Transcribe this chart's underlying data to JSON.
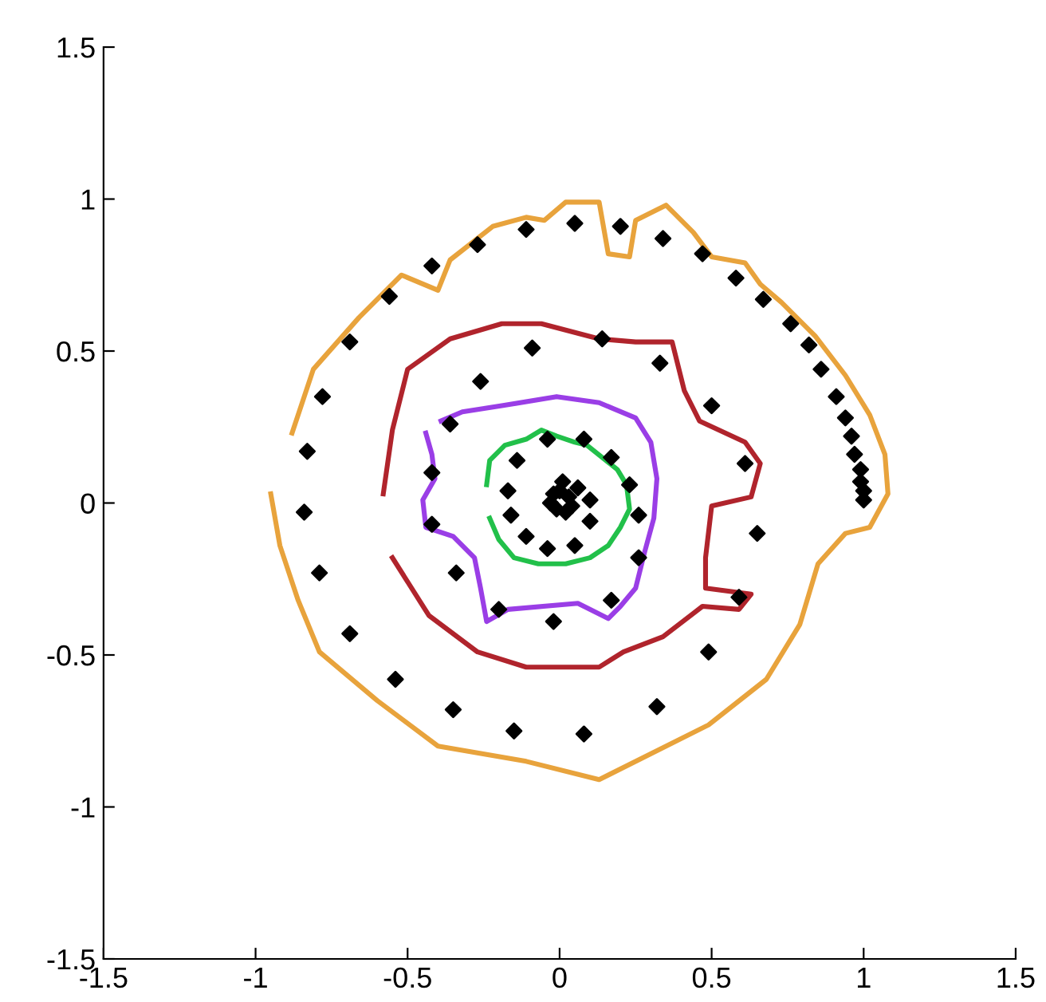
{
  "chart_data": {
    "type": "line",
    "xlim": [
      -1.5,
      1.5
    ],
    "ylim": [
      -1.5,
      1.5
    ],
    "xticks": [
      -1.5,
      -1,
      -0.5,
      0,
      0.5,
      1,
      1.5
    ],
    "yticks": [
      -1.5,
      -1,
      -0.5,
      0,
      0.5,
      1,
      1.5
    ],
    "grid": false,
    "legend": false,
    "series": [
      {
        "color": "#e8a33c",
        "marker": "none",
        "x": [
          -0.95,
          -0.92,
          -0.86,
          -0.79,
          -0.6,
          -0.4,
          -0.11,
          0.13,
          0.49,
          0.68,
          0.79,
          0.85,
          0.94,
          1.02,
          1.08,
          1.07,
          1.02,
          0.94,
          0.84,
          0.73,
          0.66,
          0.61,
          0.5,
          0.44,
          0.35,
          0.25,
          0.23,
          0.16,
          0.13,
          0.02,
          -0.05,
          -0.11,
          -0.22,
          -0.36,
          -0.4,
          -0.52,
          -0.66,
          -0.81,
          -0.88
        ],
        "values": [
          0.03,
          -0.14,
          -0.32,
          -0.49,
          -0.65,
          -0.8,
          -0.85,
          -0.91,
          -0.73,
          -0.58,
          -0.4,
          -0.2,
          -0.1,
          -0.08,
          0.03,
          0.16,
          0.29,
          0.42,
          0.55,
          0.66,
          0.72,
          0.79,
          0.81,
          0.89,
          0.98,
          0.93,
          0.81,
          0.82,
          0.99,
          0.99,
          0.93,
          0.94,
          0.91,
          0.8,
          0.7,
          0.75,
          0.61,
          0.44,
          0.23
        ]
      },
      {
        "color": "#b0242c",
        "marker": "none",
        "x": [
          -0.58,
          -0.55,
          -0.5,
          -0.36,
          -0.19,
          -0.06,
          0.13,
          0.25,
          0.37,
          0.41,
          0.46,
          0.61,
          0.66,
          0.63,
          0.5,
          0.48,
          0.48,
          0.63,
          0.59,
          0.47,
          0.34,
          0.21,
          0.13,
          -0.11,
          -0.27,
          -0.43,
          -0.55
        ],
        "values": [
          0.03,
          0.24,
          0.44,
          0.54,
          0.59,
          0.59,
          0.54,
          0.53,
          0.53,
          0.37,
          0.27,
          0.2,
          0.13,
          0.02,
          -0.01,
          -0.18,
          -0.28,
          -0.3,
          -0.35,
          -0.34,
          -0.44,
          -0.49,
          -0.54,
          -0.54,
          -0.49,
          -0.37,
          -0.18
        ]
      },
      {
        "color": "#9a3ee6",
        "marker": "none",
        "x": [
          -0.39,
          -0.32,
          -0.19,
          -0.01,
          0.13,
          0.25,
          0.3,
          0.32,
          0.31,
          0.28,
          0.25,
          0.2,
          0.16,
          0.06,
          -0.17,
          -0.24,
          -0.26,
          -0.28,
          -0.35,
          -0.44,
          -0.45,
          -0.41,
          -0.42,
          -0.44
        ],
        "values": [
          0.27,
          0.3,
          0.32,
          0.35,
          0.33,
          0.28,
          0.2,
          0.08,
          -0.05,
          -0.16,
          -0.28,
          -0.34,
          -0.38,
          -0.33,
          -0.35,
          -0.39,
          -0.28,
          -0.18,
          -0.11,
          -0.08,
          0.01,
          0.08,
          0.16,
          0.23
        ]
      },
      {
        "color": "#22c04a",
        "marker": "none",
        "x": [
          -0.24,
          -0.23,
          -0.18,
          -0.11,
          -0.06,
          -0.01,
          0.05,
          0.09,
          0.14,
          0.19,
          0.22,
          0.23,
          0.2,
          0.16,
          0.1,
          0.02,
          -0.07,
          -0.15,
          -0.2,
          -0.23
        ],
        "values": [
          0.06,
          0.14,
          0.19,
          0.21,
          0.24,
          0.22,
          0.2,
          0.19,
          0.15,
          0.11,
          0.06,
          -0.02,
          -0.08,
          -0.14,
          -0.18,
          -0.2,
          -0.2,
          -0.18,
          -0.12,
          -0.05
        ]
      },
      {
        "type": "scatter",
        "color": "#000000",
        "marker": "diamond",
        "x": [
          -0.11,
          0.05,
          0.2,
          -0.27,
          -0.42,
          -0.56,
          -0.69,
          -0.78,
          -0.83,
          -0.84,
          0.34,
          0.47,
          0.58,
          0.67,
          0.76,
          0.82,
          0.86,
          0.91,
          0.94,
          0.96,
          0.97,
          0.99,
          0.99,
          1.0,
          1.0,
          -0.79,
          -0.69,
          -0.54,
          -0.35,
          -0.15,
          0.08,
          0.65,
          0.59,
          0.49,
          0.32,
          -0.09,
          -0.26,
          -0.36,
          -0.42,
          -0.04,
          0.08,
          0.17,
          0.23,
          -0.14,
          -0.17,
          0.01,
          0.06,
          0.1,
          0.14,
          0.33,
          0.5,
          0.61,
          -0.42,
          -0.34,
          -0.2,
          -0.02,
          0.17,
          0.26,
          -0.16,
          -0.11,
          -0.04,
          0.05,
          0.1,
          0.26,
          -0.02,
          0.03,
          -0.01,
          0.02,
          -0.03,
          0.0,
          0.04
        ],
        "values": [
          0.9,
          0.92,
          0.91,
          0.85,
          0.78,
          0.68,
          0.53,
          0.35,
          0.17,
          -0.03,
          0.87,
          0.82,
          0.74,
          0.67,
          0.59,
          0.52,
          0.44,
          0.35,
          0.28,
          0.22,
          0.16,
          0.11,
          0.07,
          0.04,
          0.01,
          -0.23,
          -0.43,
          -0.58,
          -0.68,
          -0.75,
          -0.76,
          -0.1,
          -0.31,
          -0.49,
          -0.67,
          0.51,
          0.4,
          0.26,
          0.1,
          0.21,
          0.21,
          0.15,
          0.06,
          0.14,
          0.04,
          0.07,
          0.05,
          0.01,
          0.54,
          0.46,
          0.32,
          0.13,
          -0.07,
          -0.23,
          -0.35,
          -0.39,
          -0.32,
          -0.18,
          -0.04,
          -0.11,
          -0.15,
          -0.14,
          -0.06,
          -0.04,
          0.03,
          0.02,
          -0.02,
          -0.03,
          0.0,
          0.04,
          -0.01
        ]
      }
    ]
  }
}
